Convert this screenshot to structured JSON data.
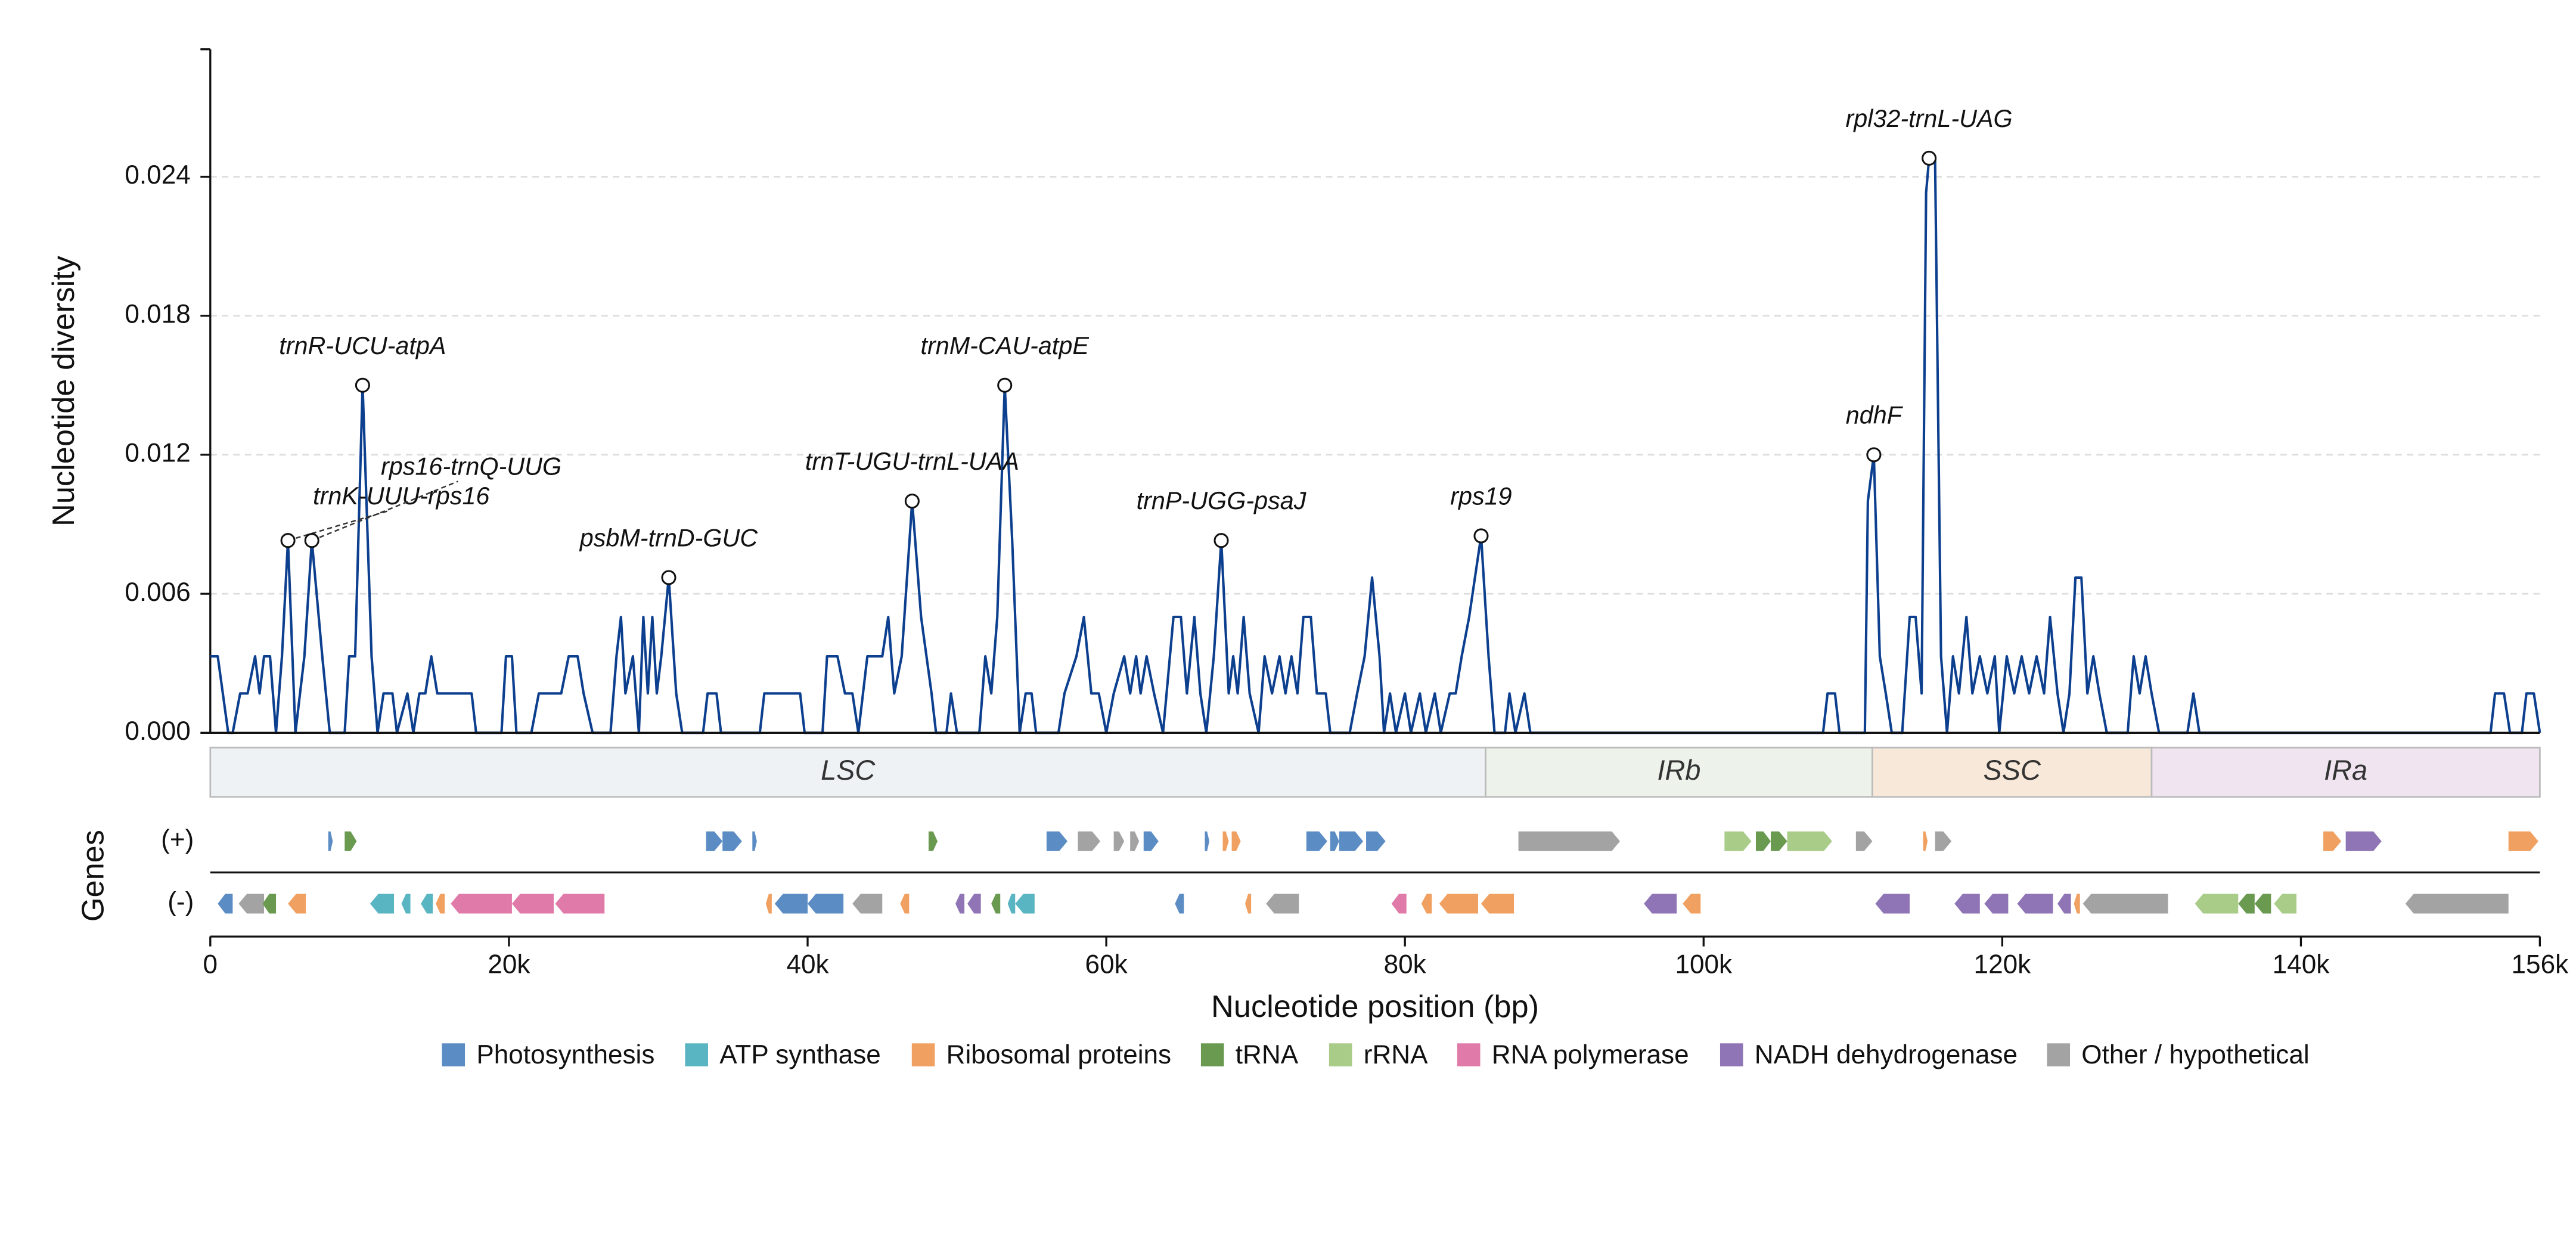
{
  "chart_data": {
    "type": "line",
    "y_label": "Nucleotide diversity",
    "x_label": "Nucleotide position (bp)",
    "genes_label": "Genes",
    "color": "#0d3f8f",
    "grid": true,
    "xlim": [
      0,
      156000
    ],
    "xticks": [
      0,
      {
        "value": 20000,
        "label": "20k"
      },
      {
        "value": 40000,
        "label": "40k"
      },
      {
        "value": 60000,
        "label": "60k"
      },
      {
        "value": 80000,
        "label": "80k"
      },
      {
        "value": 100000,
        "label": "100k"
      },
      {
        "value": 120000,
        "label": "120k"
      },
      {
        "value": 140000,
        "label": "140k"
      },
      {
        "value": 156000,
        "label": "156k"
      }
    ],
    "ylim": [
      0,
      0.0295
    ],
    "yticks": [
      {
        "value": 0,
        "label": "0.000"
      },
      0.006,
      0.012,
      0.018,
      0.024
    ],
    "x": [
      0,
      500,
      1200,
      1500,
      2000,
      2500,
      3000,
      3300,
      3600,
      4000,
      4400,
      4800,
      5200,
      5700,
      6300,
      6800,
      7500,
      8000,
      9000,
      9300,
      9700,
      10200,
      10800,
      11200,
      11600,
      12200,
      12500,
      13200,
      13600,
      14000,
      14400,
      14800,
      15200,
      17500,
      17800,
      19500,
      19800,
      20200,
      20500,
      21500,
      22000,
      23500,
      24000,
      24600,
      25000,
      25600,
      26800,
      27200,
      27500,
      27800,
      28300,
      28700,
      29000,
      29300,
      29600,
      29900,
      30200,
      30700,
      31200,
      31600,
      33000,
      33300,
      33900,
      34200,
      36800,
      37100,
      39500,
      39800,
      41000,
      41300,
      42000,
      42500,
      43000,
      43400,
      44000,
      45000,
      45400,
      45800,
      46300,
      47000,
      47600,
      48300,
      48600,
      49300,
      49600,
      50000,
      51500,
      51900,
      52300,
      52700,
      53200,
      53700,
      54200,
      54600,
      55000,
      55300,
      56800,
      57200,
      58000,
      58500,
      59000,
      59500,
      60000,
      60500,
      61200,
      61600,
      62000,
      62300,
      62700,
      63200,
      63800,
      64500,
      65000,
      65400,
      65900,
      66300,
      66700,
      67200,
      67700,
      68200,
      68500,
      68800,
      69200,
      69600,
      70200,
      70600,
      71100,
      71600,
      72000,
      72400,
      72800,
      73200,
      73700,
      74100,
      74700,
      75000,
      76300,
      76800,
      77300,
      77800,
      78300,
      78600,
      79000,
      79400,
      80000,
      80400,
      81000,
      81400,
      82000,
      82400,
      83000,
      83400,
      83800,
      84300,
      85100,
      85600,
      86000,
      86700,
      87000,
      87400,
      88000,
      88400,
      108000,
      108300,
      108800,
      109100,
      110800,
      111000,
      111400,
      111800,
      112200,
      112600,
      113300,
      113800,
      114200,
      114600,
      114900,
      115100,
      115500,
      115900,
      116300,
      116700,
      117100,
      117600,
      118000,
      118500,
      119000,
      119500,
      119800,
      120300,
      120800,
      121300,
      121800,
      122300,
      122800,
      123200,
      123700,
      124100,
      124500,
      124900,
      125300,
      125700,
      126100,
      126500,
      127000,
      128400,
      128800,
      129200,
      129600,
      130000,
      130500,
      132400,
      132800,
      133200,
      152700,
      153000,
      153600,
      154000,
      154800,
      155100,
      155600,
      156000
    ],
    "values": [
      0.0033,
      0.0033,
      0,
      0,
      0.0017,
      0.0017,
      0.0033,
      0.0017,
      0.0033,
      0.0033,
      0,
      0.0033,
      0.0083,
      0,
      0.0033,
      0.0083,
      0.0033,
      0,
      0,
      0.0033,
      0.0033,
      0.015,
      0.0033,
      0,
      0.0017,
      0.0017,
      0,
      0.0017,
      0,
      0.0017,
      0.0017,
      0.0033,
      0.0017,
      0.0017,
      0,
      0,
      0.0033,
      0.0033,
      0,
      0,
      0.0017,
      0.0017,
      0.0033,
      0.0033,
      0.0017,
      0,
      0,
      0.0033,
      0.005,
      0.0017,
      0.0033,
      0,
      0.005,
      0.0017,
      0.005,
      0.0017,
      0.0033,
      0.0067,
      0.0017,
      0,
      0,
      0.0017,
      0.0017,
      0,
      0,
      0.0017,
      0.0017,
      0,
      0,
      0.0033,
      0.0033,
      0.0017,
      0.0017,
      0,
      0.0033,
      0.0033,
      0.005,
      0.0017,
      0.0033,
      0.01,
      0.005,
      0.0017,
      0,
      0,
      0.0017,
      0,
      0,
      0.0033,
      0.0017,
      0.005,
      0.015,
      0.0083,
      0,
      0.0017,
      0.0017,
      0,
      0,
      0.0017,
      0.0033,
      0.005,
      0.0017,
      0.0017,
      0,
      0.0017,
      0.0033,
      0.0017,
      0.0033,
      0.0017,
      0.0033,
      0.0017,
      0,
      0.005,
      0.005,
      0.0017,
      0.005,
      0.0017,
      0,
      0.0033,
      0.0083,
      0.0017,
      0.0033,
      0.0017,
      0.005,
      0.0017,
      0,
      0.0033,
      0.0017,
      0.0033,
      0.0017,
      0.0033,
      0.0017,
      0.005,
      0.005,
      0.0017,
      0.0017,
      0,
      0,
      0.0017,
      0.0033,
      0.0067,
      0.0033,
      0,
      0.0017,
      0,
      0.0017,
      0,
      0.0017,
      0,
      0.0017,
      0,
      0.0017,
      0.0017,
      0.0033,
      0.005,
      0.0085,
      0.0033,
      0,
      0,
      0.0017,
      0,
      0.0017,
      0,
      0,
      0.0017,
      0.0017,
      0,
      0,
      0.01,
      0.012,
      0.0033,
      0.0017,
      0,
      0,
      0.005,
      0.005,
      0.0017,
      0.0233,
      0.0248,
      0.0248,
      0.0033,
      0,
      0.0033,
      0.0017,
      0.005,
      0.0017,
      0.0033,
      0.0017,
      0.0033,
      0,
      0.0033,
      0.0017,
      0.0033,
      0.0017,
      0.0033,
      0.0017,
      0.005,
      0.0017,
      0,
      0.0017,
      0.0067,
      0.0067,
      0.0017,
      0.0033,
      0.0017,
      0,
      0,
      0.0033,
      0.0017,
      0.0033,
      0.0017,
      0,
      0,
      0.0017,
      0,
      0,
      0.0017,
      0.0017,
      0,
      0,
      0.0017,
      0.0017,
      0
    ],
    "annotations": [
      {
        "label": "trnK-UUU-rps16",
        "x": 5200,
        "y": 0.0083
      },
      {
        "label": "rps16-trnQ-UUG",
        "x": 6800,
        "y": 0.0083
      },
      {
        "label": "trnR-UCU-atpA",
        "x": 10200,
        "y": 0.015
      },
      {
        "label": "psbM-trnD-GUC",
        "x": 30700,
        "y": 0.0067
      },
      {
        "label": "trnT-UGU-trnL-UAA",
        "x": 47000,
        "y": 0.01
      },
      {
        "label": "trnM-CAU-atpE",
        "x": 53200,
        "y": 0.015
      },
      {
        "label": "trnP-UGG-psaJ",
        "x": 67700,
        "y": 0.0083
      },
      {
        "label": "rps19",
        "x": 85100,
        "y": 0.0085
      },
      {
        "label": "ndhF",
        "x": 111400,
        "y": 0.012
      },
      {
        "label": "rpl32-trnL-UAG",
        "x": 115100,
        "y": 0.0248
      }
    ],
    "regions": [
      {
        "label": "LSC",
        "start": 0,
        "end": 85400,
        "color": "#eef2f5"
      },
      {
        "label": "IRb",
        "start": 85400,
        "end": 111300,
        "color": "#edf2ea"
      },
      {
        "label": "SSC",
        "start": 111300,
        "end": 130000,
        "color": "#f8e8d9"
      },
      {
        "label": "IRa",
        "start": 130000,
        "end": 156000,
        "color": "#efe4ef"
      }
    ],
    "tracks": [
      "(+)",
      "(-)"
    ],
    "gene_categories": [
      {
        "name": "Photosynthesis",
        "color": "#5b8cc4"
      },
      {
        "name": "ATP synthase",
        "color": "#5ab5c2"
      },
      {
        "name": "Ribosomal proteins",
        "color": "#f0a060"
      },
      {
        "name": "tRNA",
        "color": "#6a9a50"
      },
      {
        "name": "rRNA",
        "color": "#a9cc88"
      },
      {
        "name": "RNA polymerase",
        "color": "#e07aa8"
      },
      {
        "name": "NADH dehydrogenase",
        "color": "#8f75b5"
      },
      {
        "name": "Other / hypothetical",
        "color": "#a3a3a3"
      }
    ],
    "genes": [
      {
        "start": 7900,
        "end": 8200,
        "strand": 0,
        "category": 0
      },
      {
        "start": 9000,
        "end": 9800,
        "strand": 0,
        "category": 3
      },
      {
        "start": 33200,
        "end": 34300,
        "strand": 0,
        "category": 0
      },
      {
        "start": 34300,
        "end": 35600,
        "strand": 0,
        "category": 0
      },
      {
        "start": 36300,
        "end": 36600,
        "strand": 0,
        "category": 0
      },
      {
        "start": 48100,
        "end": 48700,
        "strand": 0,
        "category": 3
      },
      {
        "start": 56000,
        "end": 57400,
        "strand": 0,
        "category": 0
      },
      {
        "start": 58100,
        "end": 59600,
        "strand": 0,
        "category": 7
      },
      {
        "start": 60500,
        "end": 61200,
        "strand": 0,
        "category": 7
      },
      {
        "start": 61600,
        "end": 62200,
        "strand": 0,
        "category": 7
      },
      {
        "start": 62500,
        "end": 63500,
        "strand": 0,
        "category": 0
      },
      {
        "start": 66600,
        "end": 66900,
        "strand": 0,
        "category": 0
      },
      {
        "start": 67800,
        "end": 68200,
        "strand": 0,
        "category": 2
      },
      {
        "start": 68400,
        "end": 69000,
        "strand": 0,
        "category": 2
      },
      {
        "start": 73400,
        "end": 74800,
        "strand": 0,
        "category": 0
      },
      {
        "start": 75000,
        "end": 75600,
        "strand": 0,
        "category": 0
      },
      {
        "start": 75600,
        "end": 77200,
        "strand": 0,
        "category": 0
      },
      {
        "start": 77400,
        "end": 78700,
        "strand": 0,
        "category": 0
      },
      {
        "start": 87600,
        "end": 94400,
        "strand": 0,
        "category": 7
      },
      {
        "start": 101400,
        "end": 103200,
        "strand": 0,
        "category": 4
      },
      {
        "start": 103500,
        "end": 104500,
        "strand": 0,
        "category": 3
      },
      {
        "start": 104500,
        "end": 105600,
        "strand": 0,
        "category": 3
      },
      {
        "start": 105600,
        "end": 108600,
        "strand": 0,
        "category": 4
      },
      {
        "start": 110200,
        "end": 111300,
        "strand": 0,
        "category": 7
      },
      {
        "start": 114700,
        "end": 115000,
        "strand": 0,
        "category": 2
      },
      {
        "start": 115500,
        "end": 116600,
        "strand": 0,
        "category": 7
      },
      {
        "start": 141500,
        "end": 142700,
        "strand": 0,
        "category": 2
      },
      {
        "start": 143000,
        "end": 145400,
        "strand": 0,
        "category": 6
      },
      {
        "start": 153900,
        "end": 155900,
        "strand": 0,
        "category": 2
      },
      {
        "start": 500,
        "end": 1500,
        "strand": 1,
        "category": 0
      },
      {
        "start": 1900,
        "end": 3600,
        "strand": 1,
        "category": 7
      },
      {
        "start": 3500,
        "end": 4400,
        "strand": 1,
        "category": 3
      },
      {
        "start": 5200,
        "end": 6400,
        "strand": 1,
        "category": 2
      },
      {
        "start": 10700,
        "end": 12300,
        "strand": 1,
        "category": 1
      },
      {
        "start": 12800,
        "end": 13400,
        "strand": 1,
        "category": 1
      },
      {
        "start": 14100,
        "end": 14900,
        "strand": 1,
        "category": 1
      },
      {
        "start": 15100,
        "end": 15700,
        "strand": 1,
        "category": 2
      },
      {
        "start": 16100,
        "end": 20200,
        "strand": 1,
        "category": 5
      },
      {
        "start": 20200,
        "end": 23000,
        "strand": 1,
        "category": 5
      },
      {
        "start": 23100,
        "end": 26400,
        "strand": 1,
        "category": 5
      },
      {
        "start": 37200,
        "end": 37600,
        "strand": 1,
        "category": 2
      },
      {
        "start": 37800,
        "end": 40000,
        "strand": 1,
        "category": 0
      },
      {
        "start": 40000,
        "end": 42400,
        "strand": 1,
        "category": 0
      },
      {
        "start": 43000,
        "end": 45000,
        "strand": 1,
        "category": 7
      },
      {
        "start": 46200,
        "end": 46800,
        "strand": 1,
        "category": 2
      },
      {
        "start": 49900,
        "end": 50500,
        "strand": 1,
        "category": 6
      },
      {
        "start": 50700,
        "end": 51600,
        "strand": 1,
        "category": 6
      },
      {
        "start": 52300,
        "end": 52900,
        "strand": 1,
        "category": 3
      },
      {
        "start": 53400,
        "end": 53900,
        "strand": 1,
        "category": 1
      },
      {
        "start": 53900,
        "end": 55200,
        "strand": 1,
        "category": 1
      },
      {
        "start": 64600,
        "end": 65200,
        "strand": 1,
        "category": 0
      },
      {
        "start": 69300,
        "end": 69700,
        "strand": 1,
        "category": 2
      },
      {
        "start": 70700,
        "end": 72900,
        "strand": 1,
        "category": 7
      },
      {
        "start": 79100,
        "end": 80100,
        "strand": 1,
        "category": 5
      },
      {
        "start": 81100,
        "end": 81800,
        "strand": 1,
        "category": 2
      },
      {
        "start": 82300,
        "end": 84900,
        "strand": 1,
        "category": 2
      },
      {
        "start": 85100,
        "end": 87300,
        "strand": 1,
        "category": 2
      },
      {
        "start": 96000,
        "end": 98200,
        "strand": 1,
        "category": 6
      },
      {
        "start": 98600,
        "end": 99800,
        "strand": 1,
        "category": 2
      },
      {
        "start": 111500,
        "end": 113800,
        "strand": 1,
        "category": 6
      },
      {
        "start": 116800,
        "end": 118500,
        "strand": 1,
        "category": 6
      },
      {
        "start": 118800,
        "end": 120400,
        "strand": 1,
        "category": 6
      },
      {
        "start": 121000,
        "end": 123400,
        "strand": 1,
        "category": 6
      },
      {
        "start": 123700,
        "end": 124600,
        "strand": 1,
        "category": 6
      },
      {
        "start": 124800,
        "end": 125200,
        "strand": 1,
        "category": 2
      },
      {
        "start": 125400,
        "end": 131100,
        "strand": 1,
        "category": 7
      },
      {
        "start": 132900,
        "end": 135800,
        "strand": 1,
        "category": 4
      },
      {
        "start": 135800,
        "end": 136900,
        "strand": 1,
        "category": 3
      },
      {
        "start": 136900,
        "end": 138000,
        "strand": 1,
        "category": 3
      },
      {
        "start": 138200,
        "end": 139700,
        "strand": 1,
        "category": 4
      },
      {
        "start": 147000,
        "end": 153900,
        "strand": 1,
        "category": 7
      }
    ]
  }
}
